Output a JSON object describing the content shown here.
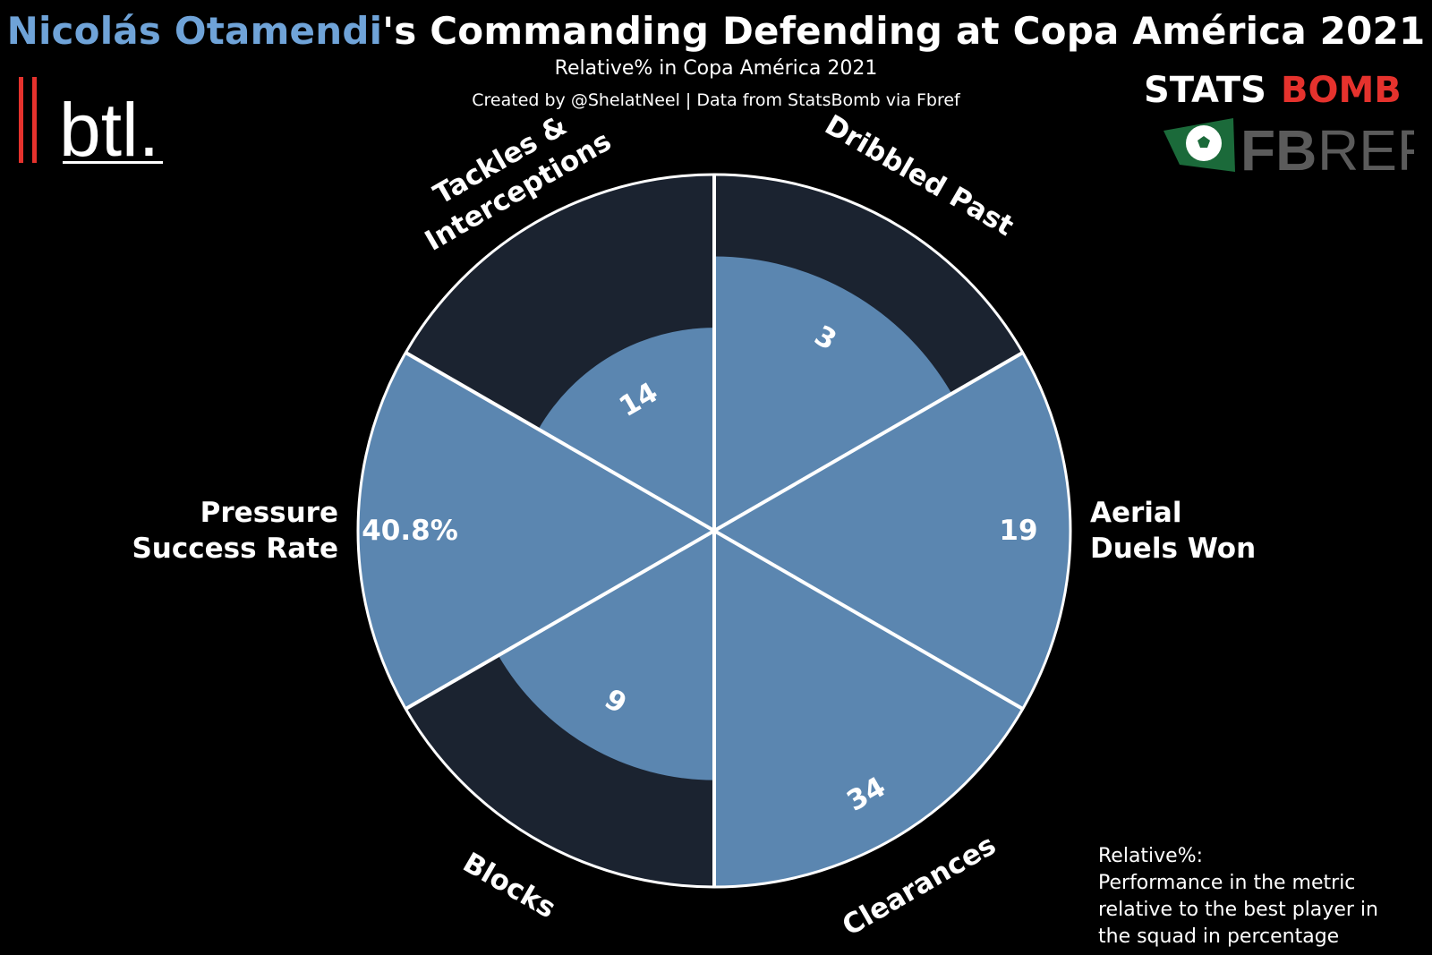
{
  "header": {
    "title_name": "Nicolás Otamendi",
    "title_rest": "'s Commanding Defending at Copa América 2021",
    "subtitle": "Relative% in Copa América 2021",
    "credit": "Created by @ShelatNeel | Data from StatsBomb via Fbref"
  },
  "logos": {
    "btl": "btl.",
    "statsbomb_left": "STATS",
    "statsbomb_right": "BOMB",
    "fbref_left": "FB",
    "fbref_right": "REF"
  },
  "note": {
    "line1": "Relative%:",
    "line2": "Performance in the metric",
    "line3": "relative to the best player in",
    "line4": "the squad in percentage"
  },
  "colors": {
    "background": "#000000",
    "slice": "#5b86b0",
    "slice_background": "#1b2330",
    "divider": "#ffffff",
    "title_highlight": "#6fa3d8",
    "statsbomb_red": "#e5322d",
    "fbref_green": "#1b6a3a",
    "fbref_grey": "#5b5b5b"
  },
  "chart_data": {
    "type": "polar-bar",
    "title": "Relative% in Copa América 2021",
    "max": 100,
    "categories": [
      "Dribbled Past",
      "Aerial Duels Won",
      "Clearances",
      "Blocks",
      "Pressure Success Rate",
      "Tackles & Interceptions"
    ],
    "category_lines": [
      [
        "Dribbled Past"
      ],
      [
        "Aerial",
        "Duels Won"
      ],
      [
        "Clearances"
      ],
      [
        "Blocks"
      ],
      [
        "Pressure",
        "Success Rate"
      ],
      [
        "Tackles &",
        "Interceptions"
      ]
    ],
    "value_labels": [
      "3",
      "19",
      "34",
      "9",
      "40.8%",
      "14"
    ],
    "relative_percent": [
      77,
      100,
      100,
      70,
      100,
      57
    ]
  }
}
